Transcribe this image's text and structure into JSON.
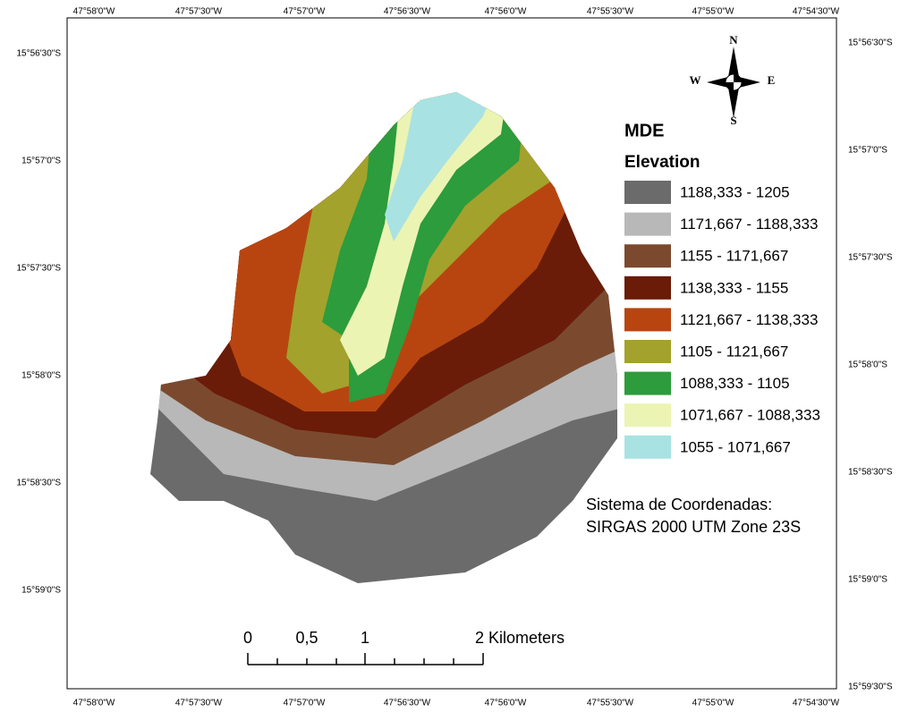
{
  "top_labels": [
    "47°58'0\"W",
    "47°57'30\"W",
    "47°57'0\"W",
    "47°56'30\"W",
    "47°56'0\"W",
    "47°55'30\"W",
    "47°55'0\"W",
    "47°54'30\"W"
  ],
  "bottom_labels": [
    "47°58'0\"W",
    "47°57'30\"W",
    "47°57'0\"W",
    "47°56'30\"W",
    "47°56'0\"W",
    "47°55'30\"W",
    "47°55'0\"W",
    "47°54'30\"W"
  ],
  "left_labels": [
    "15°56'30\"S",
    "15°57'0\"S",
    "15°57'30\"S",
    "15°58'0\"S",
    "15°58'30\"S",
    "15°59'0\"S"
  ],
  "right_labels": [
    "15°56'30\"S",
    "15°57'0\"S",
    "15°57'30\"S",
    "15°58'0\"S",
    "15°58'30\"S",
    "15°59'0\"S",
    "15°59'30\"S"
  ],
  "legend": {
    "title": "MDE",
    "subtitle": "Elevation",
    "items": [
      {
        "label": "1188,333 - 1205",
        "color": "#6b6b6b"
      },
      {
        "label": "1171,667 - 1188,333",
        "color": "#b8b8b8"
      },
      {
        "label": "1155 - 1171,667",
        "color": "#7b4a2e"
      },
      {
        "label": "1138,333 - 1155",
        "color": "#6a1c08"
      },
      {
        "label": "1121,667 - 1138,333",
        "color": "#b84510"
      },
      {
        "label": "1105 - 1121,667",
        "color": "#a3a22c"
      },
      {
        "label": "1088,333 - 1105",
        "color": "#2c9c3c"
      },
      {
        "label": "1071,667 - 1088,333",
        "color": "#ecf4b4"
      },
      {
        "label": "1055 - 1071,667",
        "color": "#a9e2e2"
      }
    ]
  },
  "compass": {
    "n": "N",
    "e": "E",
    "s": "S",
    "w": "W"
  },
  "scale": {
    "labels": [
      "0",
      "0,5",
      "1",
      "2 Kilometers"
    ]
  },
  "coordinate_system": [
    "Sistema de Coordenadas:",
    "SIRGAS 2000 UTM Zone 23S"
  ]
}
